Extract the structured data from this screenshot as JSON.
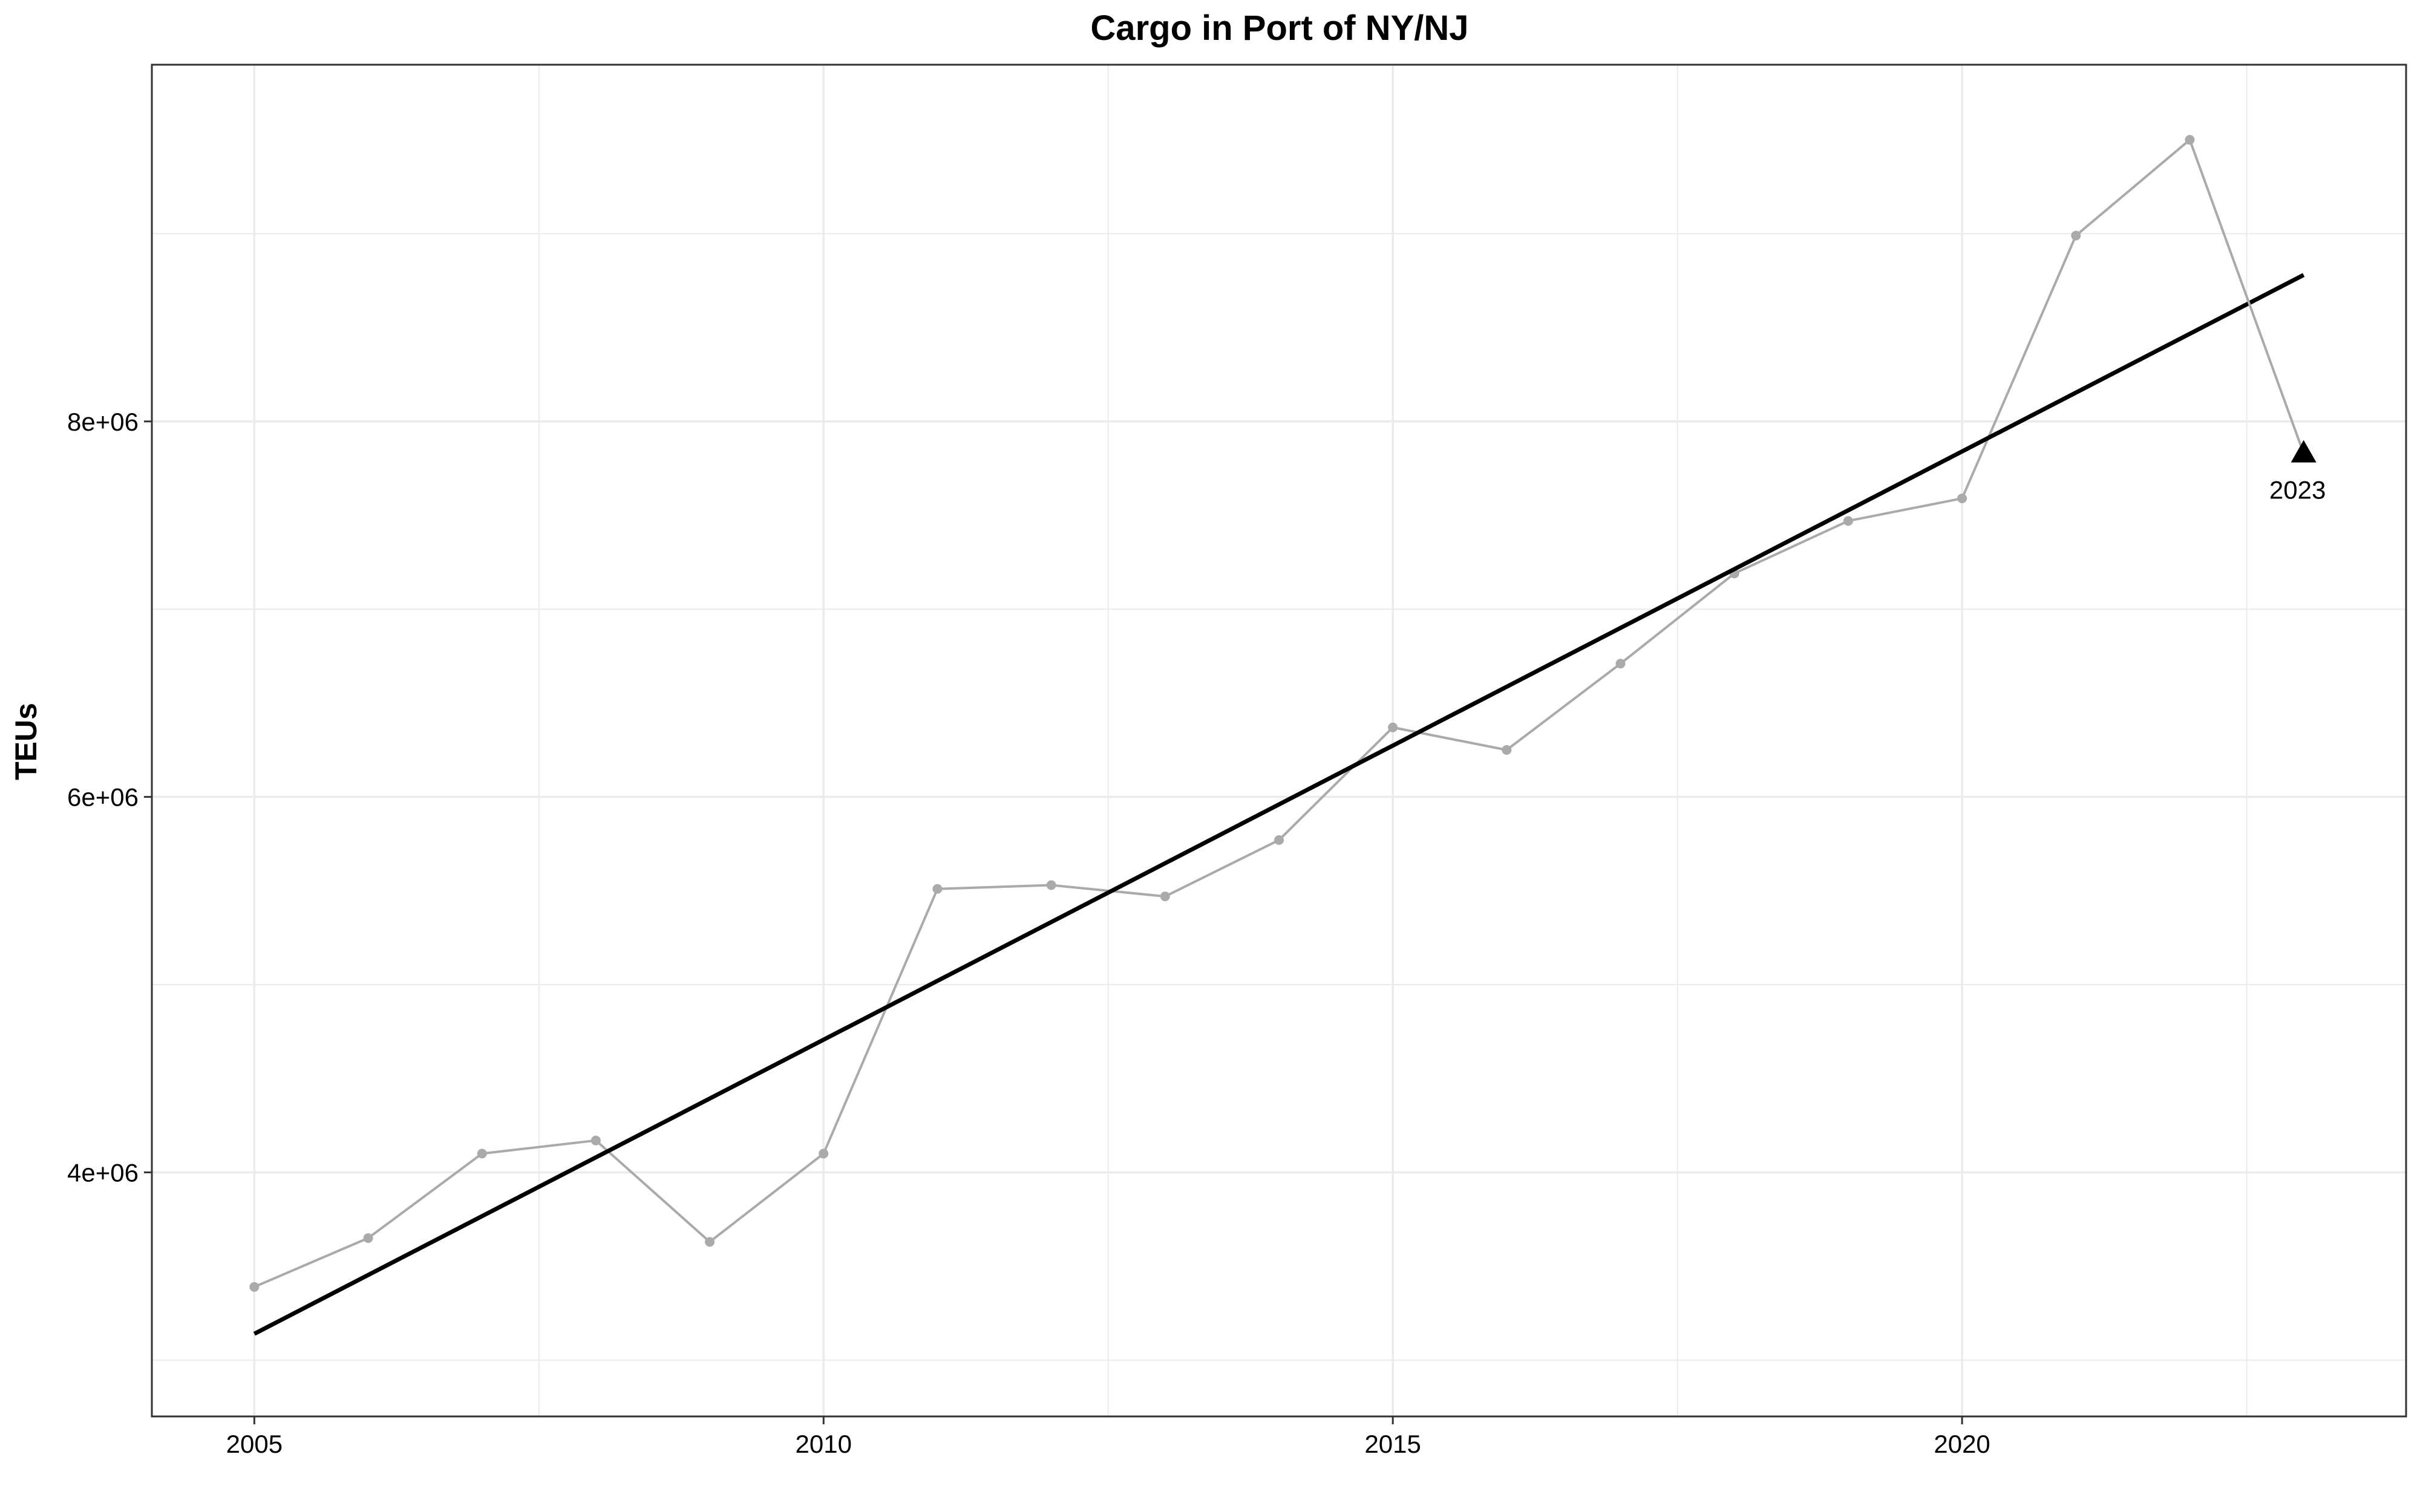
{
  "chart_data": {
    "type": "line",
    "title": "Cargo in Port of NY/NJ",
    "xlabel": "",
    "ylabel": "TEUs",
    "xlim": [
      2004.1,
      2023.9
    ],
    "ylim": [
      2700000,
      9900000
    ],
    "x_ticks": [
      2005,
      2010,
      2015,
      2020
    ],
    "x_minor": [
      2007.5,
      2012.5,
      2017.5,
      2022.5
    ],
    "y_ticks": [
      4000000,
      6000000,
      8000000
    ],
    "y_tick_labels": [
      "4e+06",
      "6e+06",
      "8e+06"
    ],
    "y_minor": [
      3000000,
      5000000,
      7000000,
      9000000
    ],
    "grid": true,
    "series": [
      {
        "x": [
          2005,
          2006,
          2007,
          2008,
          2009,
          2010,
          2011,
          2012,
          2013,
          2014,
          2015,
          2016,
          2017,
          2018,
          2019,
          2020,
          2021,
          2022
        ],
        "values": [
          3390000,
          3650000,
          4100000,
          4170000,
          3630000,
          4100000,
          5510000,
          5530000,
          5470000,
          5770000,
          6370000,
          6250000,
          6710000,
          7190000,
          7470000,
          7590000,
          8990000,
          9500000
        ],
        "color": "#aaaaaa"
      },
      {
        "x": [
          2005,
          2023
        ],
        "values": [
          3140000,
          8780000
        ],
        "color": "#000000"
      }
    ],
    "highlight": {
      "x": 2023,
      "value": 7830000,
      "label": "2023",
      "marker": "triangle"
    },
    "colors": {
      "data_line": "#aaaaaa",
      "trend_line": "#000000",
      "grid": "#ebebeb",
      "panel_border": "#333333"
    }
  }
}
